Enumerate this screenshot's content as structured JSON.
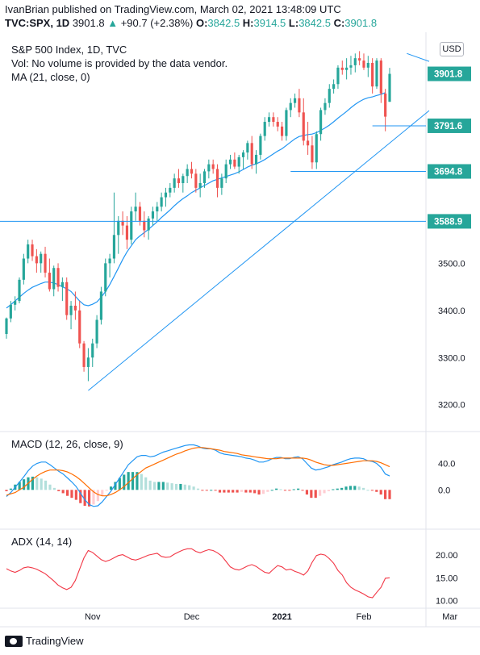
{
  "header": {
    "line1": "IvanBrian published on TradingView.com, March 02, 2021 13:48:09 UTC",
    "symbol": "TVC:SPX, 1D",
    "last": "3901.8",
    "change": "+90.7 (+2.38%)",
    "o_label": "O:",
    "o_val": "3842.5",
    "h_label": "H:",
    "h_val": "3914.5",
    "l_label": "L:",
    "l_val": "3842.5",
    "c_label": "C:",
    "c_val": "3901.8"
  },
  "legend": {
    "title": "S&P 500 Index, 1D, TVC",
    "vol": "Vol: No volume is provided by the data vendor.",
    "ma": "MA (21, close, 0)",
    "macd": "MACD (12, 26, close, 9)",
    "adx": "ADX (14, 14)"
  },
  "currency": "USD",
  "branding": "TradingView",
  "colors": {
    "up": "#26a69a",
    "down": "#ef5350",
    "ma": "#2196f3",
    "signal": "#ff6d00",
    "adx": "#f23645",
    "trend": "#2196f3"
  },
  "chart_data": [
    {
      "type": "candlestick",
      "title": "S&P 500 Index, 1D, TVC",
      "ylim": [
        3155,
        3990
      ],
      "y_ticks": [
        "3200.0",
        "3300.0",
        "3400.0",
        "3500.0"
      ],
      "x_ticks": [
        "Nov",
        "Dec",
        "2021",
        "Feb",
        "Mar"
      ],
      "price_labels": [
        {
          "value": 3901.8,
          "text": "3901.8",
          "kind": "last"
        },
        {
          "value": 3791.6,
          "text": "3791.6",
          "kind": "level"
        },
        {
          "value": 3694.8,
          "text": "3694.8",
          "kind": "level"
        },
        {
          "value": 3588.9,
          "text": "3588.9",
          "kind": "level"
        }
      ],
      "candles": [
        [
          3350,
          3385,
          3340,
          3383
        ],
        [
          3383,
          3420,
          3375,
          3412
        ],
        [
          3412,
          3430,
          3400,
          3420
        ],
        [
          3420,
          3470,
          3415,
          3465
        ],
        [
          3465,
          3520,
          3455,
          3510
        ],
        [
          3510,
          3550,
          3500,
          3540
        ],
        [
          3540,
          3550,
          3505,
          3515
        ],
        [
          3515,
          3530,
          3480,
          3500
        ],
        [
          3500,
          3525,
          3480,
          3520
        ],
        [
          3520,
          3535,
          3470,
          3480
        ],
        [
          3480,
          3510,
          3440,
          3445
        ],
        [
          3445,
          3495,
          3430,
          3490
        ],
        [
          3490,
          3500,
          3440,
          3450
        ],
        [
          3450,
          3470,
          3420,
          3460
        ],
        [
          3460,
          3470,
          3380,
          3390
        ],
        [
          3390,
          3420,
          3360,
          3410
        ],
        [
          3410,
          3440,
          3380,
          3400
        ],
        [
          3400,
          3420,
          3320,
          3330
        ],
        [
          3330,
          3335,
          3270,
          3280
        ],
        [
          3280,
          3320,
          3250,
          3300
        ],
        [
          3300,
          3340,
          3280,
          3330
        ],
        [
          3330,
          3390,
          3320,
          3380
        ],
        [
          3380,
          3450,
          3370,
          3440
        ],
        [
          3440,
          3510,
          3430,
          3500
        ],
        [
          3500,
          3520,
          3470,
          3510
        ],
        [
          3510,
          3650,
          3500,
          3560
        ],
        [
          3560,
          3600,
          3520,
          3590
        ],
        [
          3590,
          3610,
          3560,
          3580
        ],
        [
          3580,
          3600,
          3530,
          3550
        ],
        [
          3550,
          3620,
          3540,
          3610
        ],
        [
          3610,
          3650,
          3590,
          3620
        ],
        [
          3620,
          3630,
          3580,
          3590
        ],
        [
          3590,
          3610,
          3555,
          3570
        ],
        [
          3570,
          3600,
          3550,
          3595
        ],
        [
          3595,
          3620,
          3580,
          3610
        ],
        [
          3610,
          3630,
          3590,
          3620
        ],
        [
          3620,
          3650,
          3610,
          3640
        ],
        [
          3640,
          3660,
          3620,
          3650
        ],
        [
          3650,
          3670,
          3640,
          3660
        ],
        [
          3660,
          3690,
          3650,
          3680
        ],
        [
          3680,
          3700,
          3660,
          3670
        ],
        [
          3670,
          3690,
          3650,
          3685
        ],
        [
          3685,
          3710,
          3670,
          3700
        ],
        [
          3700,
          3715,
          3680,
          3690
        ],
        [
          3690,
          3700,
          3650,
          3660
        ],
        [
          3660,
          3690,
          3640,
          3670
        ],
        [
          3670,
          3700,
          3660,
          3695
        ],
        [
          3695,
          3720,
          3680,
          3710
        ],
        [
          3710,
          3720,
          3690,
          3700
        ],
        [
          3700,
          3710,
          3640,
          3660
        ],
        [
          3660,
          3690,
          3645,
          3680
        ],
        [
          3680,
          3720,
          3670,
          3710
        ],
        [
          3710,
          3730,
          3700,
          3720
        ],
        [
          3720,
          3735,
          3700,
          3705
        ],
        [
          3705,
          3730,
          3690,
          3725
        ],
        [
          3725,
          3740,
          3700,
          3735
        ],
        [
          3735,
          3760,
          3720,
          3755
        ],
        [
          3755,
          3770,
          3700,
          3710
        ],
        [
          3710,
          3740,
          3690,
          3730
        ],
        [
          3730,
          3775,
          3720,
          3770
        ],
        [
          3770,
          3810,
          3760,
          3800
        ],
        [
          3800,
          3820,
          3790,
          3810
        ],
        [
          3810,
          3820,
          3790,
          3800
        ],
        [
          3800,
          3810,
          3780,
          3790
        ],
        [
          3790,
          3800,
          3760,
          3770
        ],
        [
          3770,
          3830,
          3760,
          3825
        ],
        [
          3825,
          3850,
          3810,
          3840
        ],
        [
          3840,
          3860,
          3830,
          3850
        ],
        [
          3850,
          3870,
          3810,
          3820
        ],
        [
          3820,
          3850,
          3750,
          3760
        ],
        [
          3760,
          3800,
          3730,
          3750
        ],
        [
          3750,
          3770,
          3700,
          3714
        ],
        [
          3714,
          3780,
          3700,
          3774
        ],
        [
          3774,
          3830,
          3760,
          3825
        ],
        [
          3825,
          3850,
          3815,
          3840
        ],
        [
          3840,
          3880,
          3830,
          3870
        ],
        [
          3870,
          3890,
          3860,
          3880
        ],
        [
          3880,
          3920,
          3870,
          3915
        ],
        [
          3915,
          3930,
          3900,
          3910
        ],
        [
          3910,
          3935,
          3890,
          3915
        ],
        [
          3915,
          3940,
          3900,
          3920
        ],
        [
          3920,
          3945,
          3905,
          3935
        ],
        [
          3935,
          3950,
          3920,
          3930
        ],
        [
          3930,
          3945,
          3910,
          3915
        ],
        [
          3915,
          3940,
          3895,
          3925
        ],
        [
          3925,
          3935,
          3860,
          3875
        ],
        [
          3875,
          3935,
          3870,
          3930
        ],
        [
          3930,
          3935,
          3840,
          3860
        ],
        [
          3860,
          3870,
          3780,
          3811
        ],
        [
          3842.5,
          3914.5,
          3842.5,
          3901.8
        ]
      ],
      "ma_21": [
        3405,
        3412,
        3420,
        3428,
        3436,
        3443,
        3449,
        3453,
        3457,
        3460,
        3460,
        3458,
        3455,
        3450,
        3446,
        3440,
        3430,
        3420,
        3412,
        3410,
        3413,
        3418,
        3428,
        3440,
        3455,
        3472,
        3490,
        3508,
        3524,
        3537,
        3550,
        3558,
        3565,
        3572,
        3580,
        3588,
        3597,
        3605,
        3613,
        3622,
        3630,
        3637,
        3643,
        3650,
        3655,
        3660,
        3665,
        3670,
        3675,
        3678,
        3681,
        3684,
        3687,
        3690,
        3694,
        3699,
        3704,
        3708,
        3711,
        3715,
        3720,
        3726,
        3732,
        3738,
        3743,
        3750,
        3757,
        3764,
        3769,
        3771,
        3773,
        3774,
        3777,
        3782,
        3787,
        3793,
        3800,
        3808,
        3815,
        3822,
        3830,
        3837,
        3843,
        3848,
        3851,
        3853,
        3856,
        3858,
        3862
      ],
      "trendlines": [
        {
          "from": [
            19,
            3230
          ],
          "to": [
            113,
            3935
          ]
        },
        {
          "from": [
            93,
            3945
          ],
          "to": [
            113,
            3880
          ]
        }
      ]
    },
    {
      "type": "line",
      "title": "MACD (12, 26, close, 9)",
      "ylim": [
        -52,
        82
      ],
      "y_ticks": [
        "40.0",
        "0.0"
      ],
      "series": [
        {
          "name": "MACD",
          "values": [
            -10,
            -4,
            4,
            12,
            20,
            29,
            36,
            40,
            42,
            42,
            38,
            33,
            28,
            24,
            18,
            12,
            5,
            -5,
            -15,
            -22,
            -25,
            -24,
            -18,
            -10,
            -2,
            8,
            18,
            28,
            38,
            44,
            50,
            52,
            52,
            50,
            51,
            54,
            57,
            59,
            61,
            63,
            65,
            67,
            68,
            68,
            66,
            63,
            62,
            62,
            60,
            56,
            54,
            53,
            52,
            51,
            50,
            48,
            47,
            45,
            42,
            42,
            44,
            47,
            49,
            49,
            47,
            47,
            49,
            50,
            47,
            40,
            33,
            30,
            31,
            33,
            35,
            38,
            40,
            42,
            45,
            47,
            48,
            48,
            47,
            44,
            43,
            40,
            34,
            24,
            21
          ]
        },
        {
          "name": "Signal",
          "values": [
            -8,
            -6,
            -4,
            0,
            4,
            10,
            16,
            21,
            25,
            28,
            30,
            30,
            30,
            29,
            27,
            24,
            20,
            15,
            9,
            3,
            -3,
            -7,
            -9,
            -9,
            -7,
            -4,
            0,
            5,
            11,
            17,
            23,
            28,
            33,
            36,
            39,
            42,
            45,
            48,
            51,
            54,
            56,
            59,
            61,
            63,
            64,
            64,
            63,
            62,
            61,
            60,
            58,
            57,
            56,
            55,
            53,
            52,
            51,
            50,
            49,
            48,
            47,
            47,
            47,
            48,
            48,
            48,
            48,
            48,
            48,
            47,
            45,
            42,
            40,
            38,
            37,
            37,
            38,
            39,
            40,
            41,
            42,
            43,
            44,
            44,
            44,
            43,
            41,
            38,
            35
          ]
        }
      ]
    },
    {
      "type": "line",
      "title": "ADX (14, 14)",
      "ylim": [
        9,
        25
      ],
      "y_ticks": [
        "20.00",
        "15.00",
        "10.00"
      ],
      "series": [
        {
          "name": "ADX",
          "values": [
            17,
            16.5,
            16.2,
            16.6,
            17.2,
            17.4,
            17.2,
            16.9,
            16.4,
            15.9,
            15.1,
            14.3,
            13.4,
            12.8,
            12.4,
            12.9,
            14.4,
            16.9,
            19.4,
            21,
            20.6,
            19.8,
            19.0,
            18.6,
            18.9,
            19.4,
            19.9,
            20.1,
            19.6,
            19.1,
            18.9,
            19.2,
            19.6,
            20.0,
            20.2,
            20.4,
            19.7,
            19.5,
            19.6,
            20.2,
            20.7,
            21.1,
            21.4,
            21.4,
            20.8,
            20.5,
            20.9,
            21.2,
            21.0,
            20.5,
            19.8,
            18.6,
            17.4,
            16.9,
            16.7,
            17.1,
            17.6,
            17.9,
            17.5,
            16.8,
            16.2,
            16.0,
            16.9,
            17.7,
            17.4,
            16.7,
            16.9,
            16.4,
            16.1,
            15.6,
            16.5,
            18.4,
            19.9,
            20.2,
            20.0,
            19.2,
            18.2,
            16.6,
            15.6,
            13.9,
            12.9,
            12.3,
            11.9,
            11.4,
            10.8,
            10.6,
            11.8,
            12.9,
            14.9,
            15.0
          ]
        }
      ]
    }
  ]
}
